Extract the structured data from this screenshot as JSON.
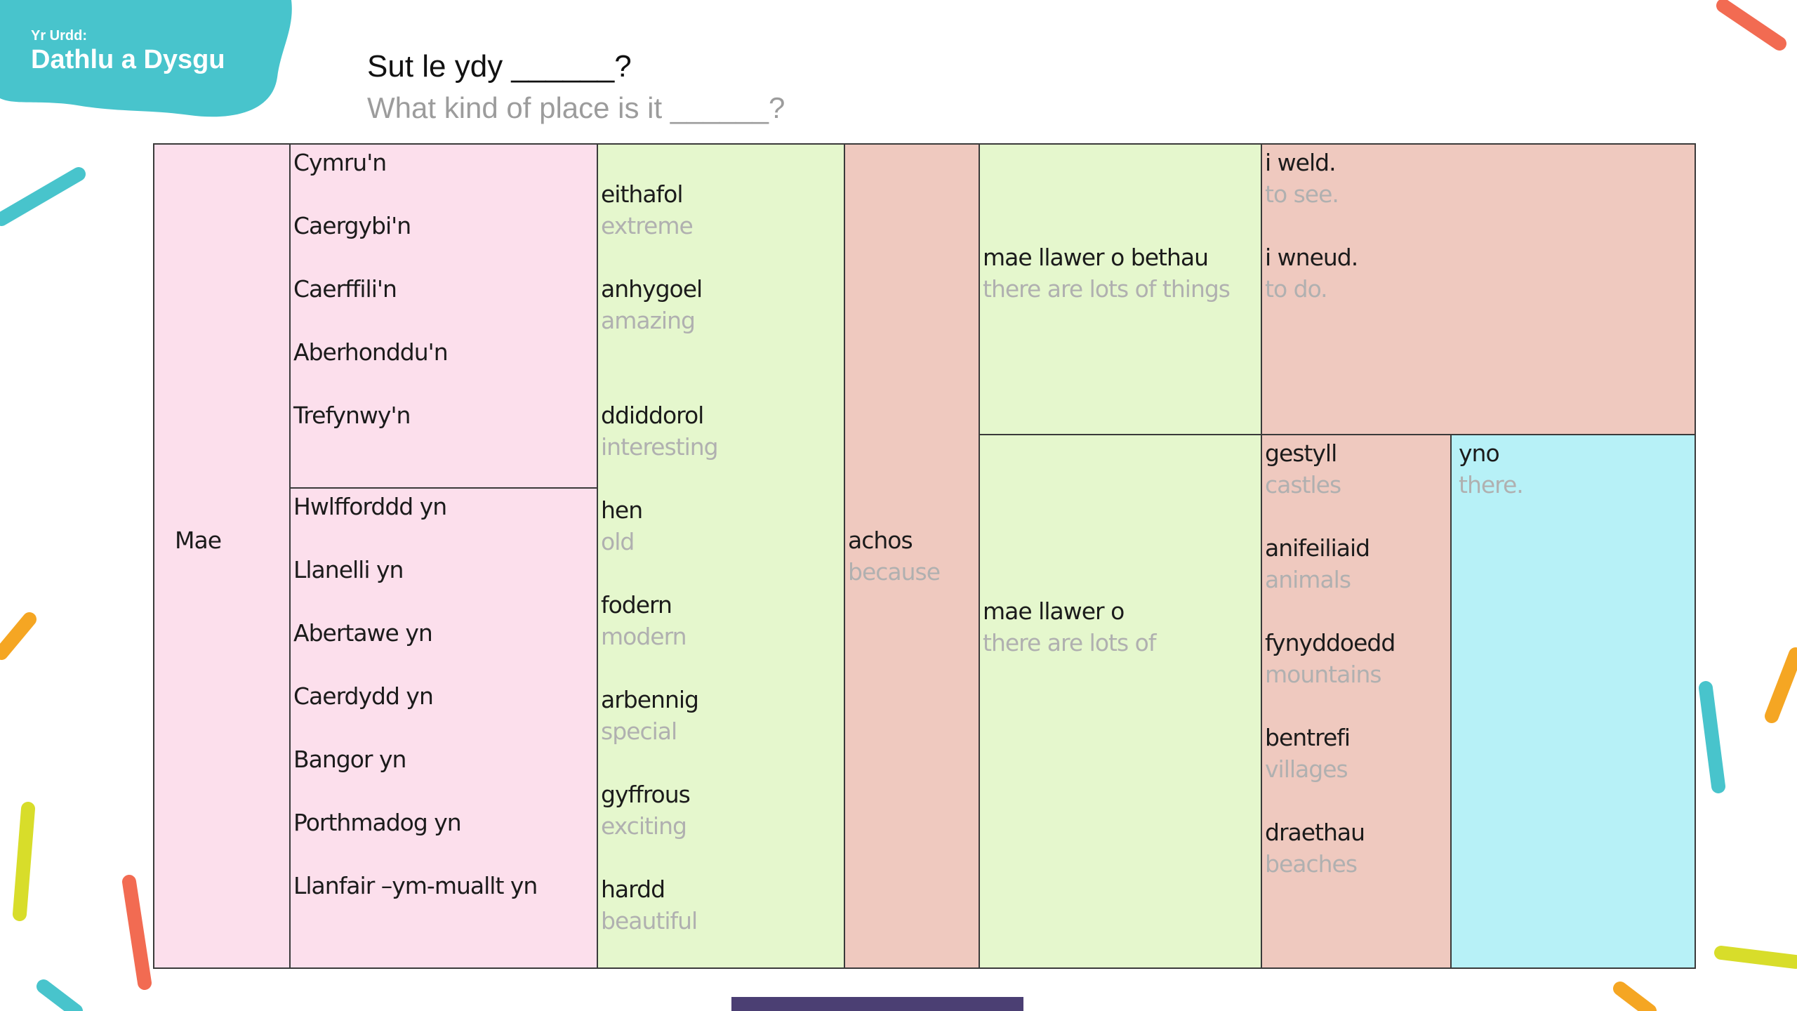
{
  "logo": {
    "small": "Yr Urdd:",
    "big": "Dathlu a Dysgu",
    "color": "#48c4cc"
  },
  "heading": {
    "welsh": "Sut le ydy ______?",
    "english": "What kind of place is it ______?"
  },
  "table": {
    "start_word": "Mae",
    "places_n": [
      "Cymru'n",
      "Caergybi'n",
      "Caerffili'n",
      "Aberhonddu'n",
      "Trefynwy'n"
    ],
    "places_yn": [
      "Hwlfforddd yn",
      "Llanelli yn",
      "Abertawe yn",
      "Caerdydd yn",
      "Bangor yn",
      "Porthmadog yn",
      "Llanfair –ym-muallt yn"
    ],
    "adjectives": [
      {
        "cy": "eithafol",
        "en": "extreme"
      },
      {
        "cy": "anhygoel",
        "en": "amazing"
      },
      {
        "cy": "ddiddorol",
        "en": "interesting"
      },
      {
        "cy": "hen",
        "en": "old"
      },
      {
        "cy": "fodern",
        "en": "modern"
      },
      {
        "cy": "arbennig",
        "en": "special"
      },
      {
        "cy": "gyffrous",
        "en": "exciting"
      },
      {
        "cy": "hardd",
        "en": "beautiful"
      }
    ],
    "because": {
      "cy": "achos",
      "en": "because"
    },
    "lots_things": {
      "cy": "mae llawer o bethau",
      "en": "there are lots of things"
    },
    "lots_of": {
      "cy": "mae llawer o",
      "en": "there are lots of"
    },
    "verbs": [
      {
        "cy": "i weld.",
        "en": "to see."
      },
      {
        "cy": "i wneud.",
        "en": "to do."
      }
    ],
    "nouns": [
      {
        "cy": "gestyll",
        "en": "castles"
      },
      {
        "cy": "anifeiliaid",
        "en": "animals"
      },
      {
        "cy": "fynyddoedd",
        "en": "mountains"
      },
      {
        "cy": "bentrefi",
        "en": "villages"
      },
      {
        "cy": "draethau",
        "en": "beaches"
      }
    ],
    "there": {
      "cy": "yno",
      "en": "there."
    }
  },
  "colors": {
    "pink": "#fcdfec",
    "green": "#e5f7cd",
    "salmon": "#efc9bf",
    "cyan": "#b7f1f7",
    "translation_grey": "#b0b0b0"
  }
}
